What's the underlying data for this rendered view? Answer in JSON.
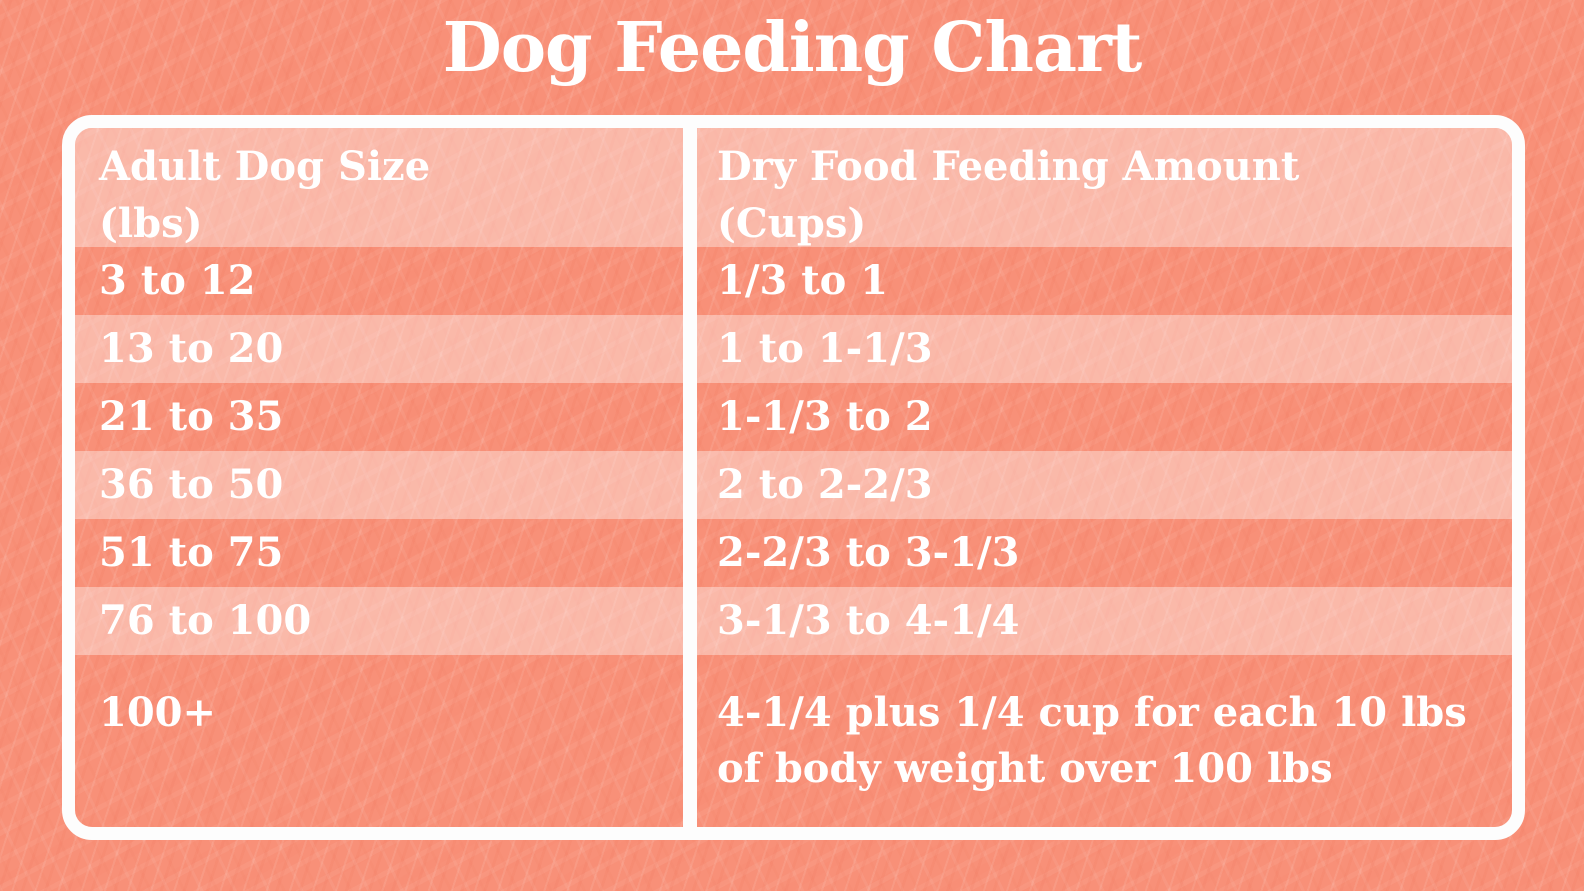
{
  "title": "Dog Feeding Chart",
  "table": {
    "header": {
      "size_line1": "Adult Dog Size",
      "size_line2": "(lbs)",
      "amount_line1": "Dry Food Feeding Amount",
      "amount_line2": "(Cups)"
    },
    "rows": [
      {
        "size": "3 to 12",
        "amount": "1/3 to 1"
      },
      {
        "size": "13 to 20",
        "amount": "1 to 1-1/3"
      },
      {
        "size": "21 to 35",
        "amount": "1-1/3 to 2"
      },
      {
        "size": "36 to 50",
        "amount": "2 to 2-2/3"
      },
      {
        "size": "51 to 75",
        "amount": "2-2/3 to 3-1/3"
      },
      {
        "size": "76 to 100",
        "amount": "3-1/3 to 4-1/4"
      },
      {
        "size": "100+",
        "amount": "4-1/4 plus 1/4 cup for each 10 lbs of body weight over 100 lbs"
      }
    ]
  },
  "colors": {
    "background_coral": "#f89078",
    "row_light_pink": "#fab5a4",
    "border_white": "#fdfdfd",
    "text_white": "#ffffff"
  },
  "chart_data": {
    "type": "table",
    "title": "Dog Feeding Chart",
    "columns": [
      "Adult Dog Size (lbs)",
      "Dry Food Feeding Amount (Cups)"
    ],
    "rows": [
      [
        "3 to 12",
        "1/3 to 1"
      ],
      [
        "13 to 20",
        "1 to 1-1/3"
      ],
      [
        "21 to 35",
        "1-1/3 to 2"
      ],
      [
        "36 to 50",
        "2 to 2-2/3"
      ],
      [
        "51 to 75",
        "2-2/3 to 3-1/3"
      ],
      [
        "76 to 100",
        "3-1/3 to 4-1/4"
      ],
      [
        "100+",
        "4-1/4 plus 1/4 cup for each 10 lbs of body weight over 100 lbs"
      ]
    ],
    "layout": {
      "row_striping": "alternating dark coral / light pink",
      "header_background": "light pink",
      "border": "white rounded frame with white column divider",
      "text_color": "white"
    }
  }
}
